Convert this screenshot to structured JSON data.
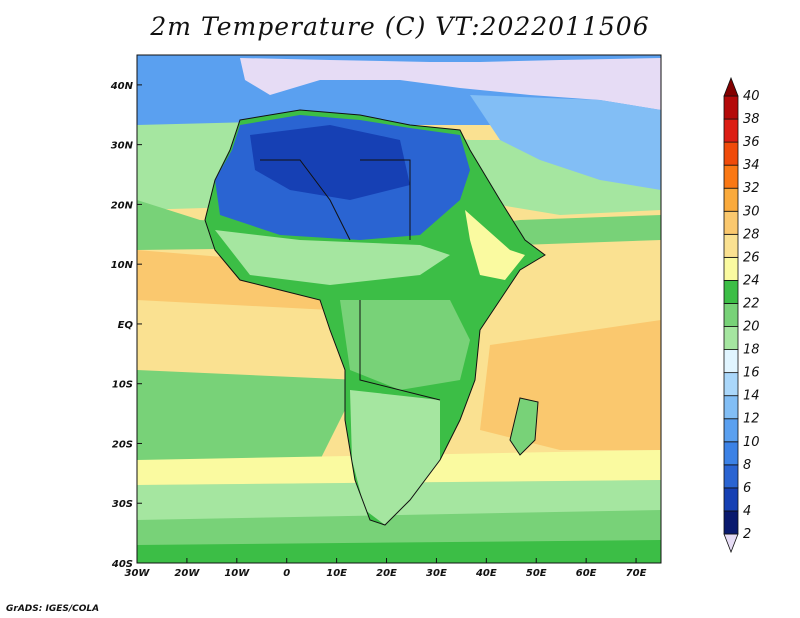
{
  "title": "2m Temperature (C) VT:2022011506",
  "credit": "GrADS: IGES/COLA",
  "map": {
    "lon_range": [
      -30,
      75
    ],
    "lat_range": [
      -40,
      45
    ],
    "lon_ticks": [
      {
        "value": -30,
        "label": "30W"
      },
      {
        "value": -20,
        "label": "20W"
      },
      {
        "value": -10,
        "label": "10W"
      },
      {
        "value": 0,
        "label": "0"
      },
      {
        "value": 10,
        "label": "10E"
      },
      {
        "value": 20,
        "label": "20E"
      },
      {
        "value": 30,
        "label": "30E"
      },
      {
        "value": 40,
        "label": "40E"
      },
      {
        "value": 50,
        "label": "50E"
      },
      {
        "value": 60,
        "label": "60E"
      },
      {
        "value": 70,
        "label": "70E"
      }
    ],
    "lat_ticks": [
      {
        "value": 40,
        "label": "40N"
      },
      {
        "value": 30,
        "label": "30N"
      },
      {
        "value": 20,
        "label": "20N"
      },
      {
        "value": 10,
        "label": "10N"
      },
      {
        "value": 0,
        "label": "EQ"
      },
      {
        "value": -10,
        "label": "10S"
      },
      {
        "value": -20,
        "label": "20S"
      },
      {
        "value": -30,
        "label": "30S"
      },
      {
        "value": -40,
        "label": "40S"
      }
    ]
  },
  "colorbar": {
    "levels": [
      "2",
      "4",
      "6",
      "8",
      "10",
      "12",
      "14",
      "16",
      "18",
      "20",
      "22",
      "24",
      "26",
      "28",
      "30",
      "32",
      "34",
      "36",
      "38",
      "40"
    ],
    "colors": [
      "#e6dcf5",
      "#0a1a6e",
      "#1640b4",
      "#2a64d2",
      "#3c82e6",
      "#5aa0f0",
      "#82bef5",
      "#aad7fa",
      "#e1f5ff",
      "#a5e6a0",
      "#78d278",
      "#3cbe46",
      "#fafaa0",
      "#fae191",
      "#fac86e",
      "#faaa3c",
      "#fa7814",
      "#f04b0a",
      "#dc1e14",
      "#b40a0a",
      "#820000"
    ]
  }
}
